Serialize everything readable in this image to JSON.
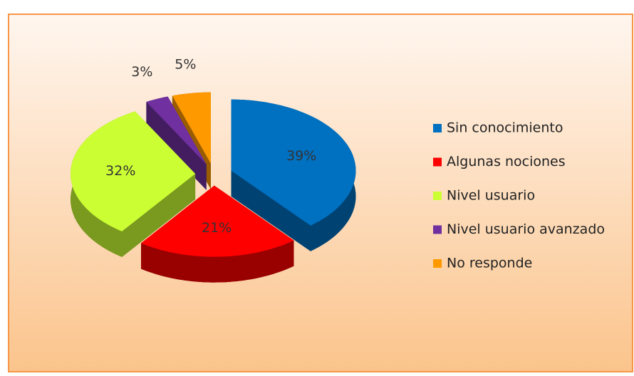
{
  "chart_data": {
    "type": "pie",
    "categories": [
      "Sin conocimiento",
      "Algunas nociones",
      "Nivel usuario",
      "Nivel usuario avanzado",
      "No responde"
    ],
    "values": [
      39,
      21,
      32,
      3,
      5
    ],
    "value_labels": [
      "39%",
      "21%",
      "32%",
      "3%",
      "5%"
    ],
    "colors": [
      "#0070c0",
      "#ff0000",
      "#ccff33",
      "#7030a0",
      "#ff9900"
    ],
    "legend": "right"
  }
}
